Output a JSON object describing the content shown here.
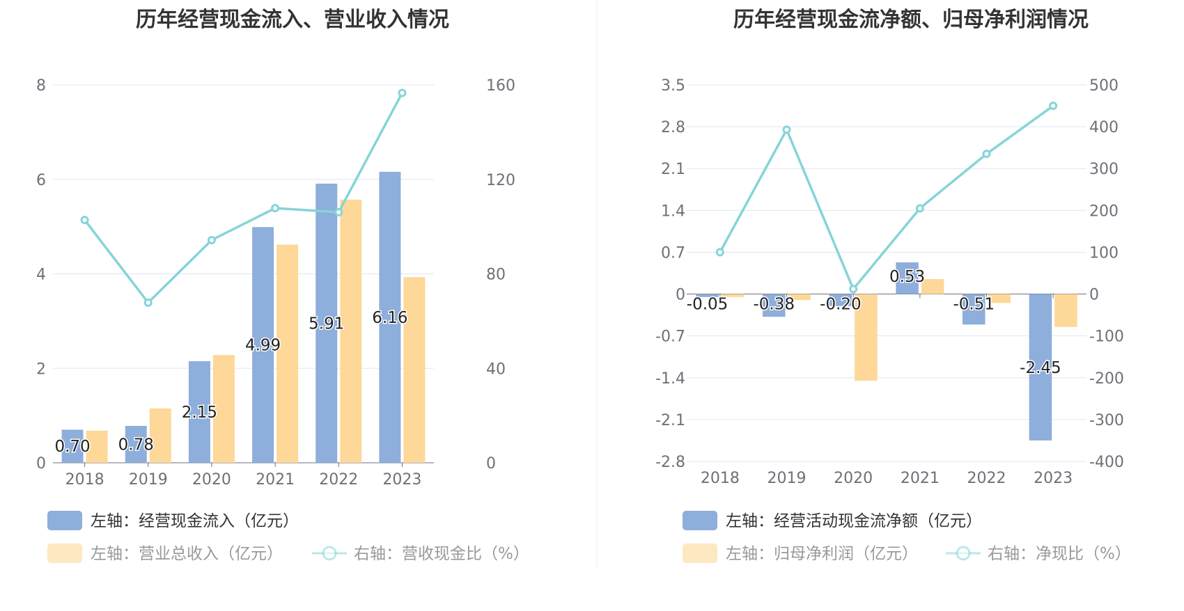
{
  "chart_data": [
    {
      "type": "bar",
      "title": "历年经营现金流入、营业收入情况",
      "categories": [
        "2018",
        "2019",
        "2020",
        "2021",
        "2022",
        "2023"
      ],
      "left_axis": {
        "ticks": [
          "0",
          "2",
          "4",
          "6",
          "8"
        ],
        "range": [
          0,
          8
        ]
      },
      "right_axis": {
        "ticks": [
          "0",
          "40",
          "80",
          "120",
          "160"
        ],
        "range": [
          0,
          160
        ]
      },
      "series": [
        {
          "name": "左轴：经营现金流入（亿元）",
          "type": "bar",
          "axis": "left",
          "color": "#8eaedb",
          "values": [
            0.7,
            0.78,
            2.15,
            4.99,
            5.91,
            6.16
          ],
          "labels": [
            "0.70",
            "0.78",
            "2.15",
            "4.99",
            "5.91",
            "6.16"
          ]
        },
        {
          "name": "左轴：营业总收入（亿元）",
          "type": "bar",
          "axis": "left",
          "color": "#fdd898",
          "values": [
            0.68,
            1.15,
            2.28,
            4.62,
            5.57,
            3.93
          ]
        },
        {
          "name": "右轴：营收现金比（%）",
          "type": "line",
          "axis": "right",
          "color": "#86d4d8",
          "values": [
            102.8,
            67.8,
            94.3,
            107.8,
            106.1,
            156.6
          ]
        }
      ]
    },
    {
      "type": "bar",
      "title": "历年经营现金流净额、归母净利润情况",
      "categories": [
        "2018",
        "2019",
        "2020",
        "2021",
        "2022",
        "2023"
      ],
      "left_axis": {
        "ticks": [
          "3.5",
          "2.8",
          "2.1",
          "1.4",
          "0.7",
          "0",
          "-0.7",
          "-1.4",
          "-2.1",
          "-2.8"
        ],
        "range": [
          -2.8,
          3.5
        ]
      },
      "right_axis": {
        "ticks": [
          "500",
          "400",
          "300",
          "200",
          "100",
          "0",
          "-100",
          "-200",
          "-300",
          "-400"
        ],
        "range": [
          -400,
          500
        ]
      },
      "series": [
        {
          "name": "左轴：经营活动现金流净额（亿元）",
          "type": "bar",
          "axis": "left",
          "color": "#8eaedb",
          "values": [
            -0.05,
            -0.38,
            -0.2,
            0.53,
            -0.51,
            -2.45
          ],
          "labels": [
            "-0.05",
            "-0.38",
            "-0.20",
            "0.53",
            "-0.51",
            "-2.45"
          ]
        },
        {
          "name": "左轴：归母净利润（亿元）",
          "type": "bar",
          "axis": "left",
          "color": "#fdd898",
          "values": [
            -0.05,
            -0.1,
            -1.45,
            0.25,
            -0.15,
            -0.55
          ]
        },
        {
          "name": "右轴：净现比（%）",
          "type": "line",
          "axis": "right",
          "color": "#86d4d8",
          "values": [
            100,
            393,
            12,
            205,
            335,
            450
          ]
        }
      ]
    }
  ]
}
